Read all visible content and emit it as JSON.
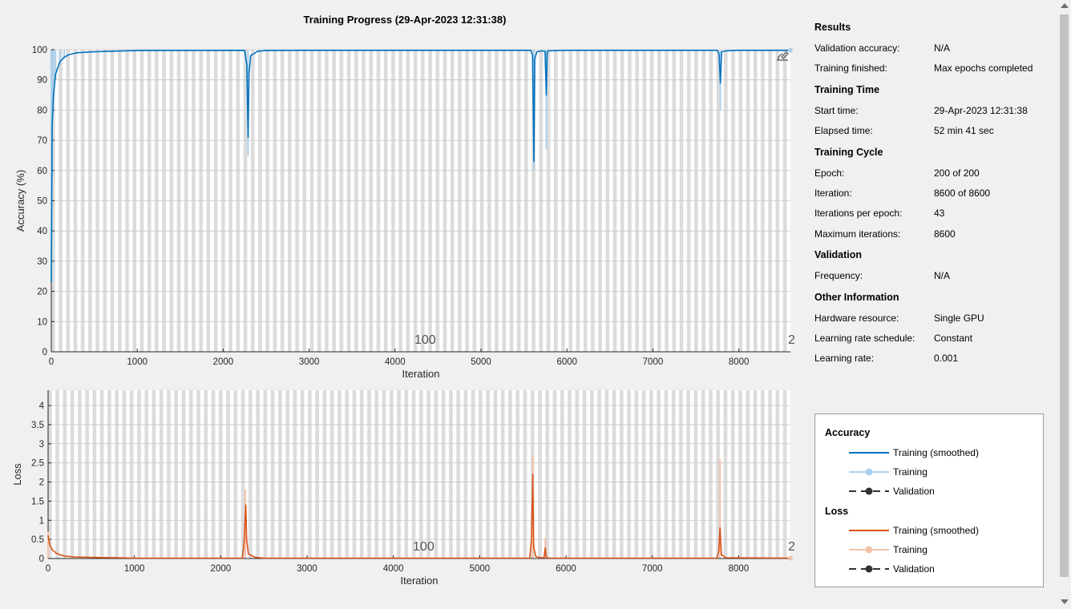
{
  "title": "Training Progress (29-Apr-2023 12:31:38)",
  "info": {
    "results": {
      "heading": "Results",
      "rows": [
        {
          "label": "Validation accuracy:",
          "value": "N/A"
        },
        {
          "label": "Training finished:",
          "value": "Max epochs completed"
        }
      ]
    },
    "training_time": {
      "heading": "Training Time",
      "rows": [
        {
          "label": "Start time:",
          "value": "29-Apr-2023 12:31:38"
        },
        {
          "label": "Elapsed time:",
          "value": "52 min 41 sec"
        }
      ]
    },
    "training_cycle": {
      "heading": "Training Cycle",
      "rows": [
        {
          "label": "Epoch:",
          "value": "200 of 200"
        },
        {
          "label": "Iteration:",
          "value": "8600 of 8600"
        },
        {
          "label": "Iterations per epoch:",
          "value": "43"
        },
        {
          "label": "Maximum iterations:",
          "value": "8600"
        }
      ]
    },
    "validation": {
      "heading": "Validation",
      "rows": [
        {
          "label": "Frequency:",
          "value": "N/A"
        }
      ]
    },
    "other": {
      "heading": "Other Information",
      "rows": [
        {
          "label": "Hardware resource:",
          "value": "Single GPU"
        },
        {
          "label": "Learning rate schedule:",
          "value": "Constant"
        },
        {
          "label": "Learning rate:",
          "value": "0.001"
        }
      ]
    }
  },
  "legend": {
    "accuracy_heading": "Accuracy",
    "loss_heading": "Loss",
    "items": {
      "acc_smoothed": "Training (smoothed)",
      "acc_training": "Training",
      "acc_validation": "Validation",
      "loss_smoothed": "Training (smoothed)",
      "loss_training": "Training",
      "loss_validation": "Validation"
    }
  },
  "colors": {
    "accuracy": "#0072bd",
    "accuracy_light": "#aed0ea",
    "loss": "#d95319",
    "loss_light": "#f4c2ac",
    "validation": "#333333"
  },
  "icons": {
    "export": "export-icon"
  },
  "chart_data": [
    {
      "type": "line",
      "ylabel": "Accuracy (%)",
      "xlabel": "Iteration",
      "xlim": [
        0,
        8600
      ],
      "ylim": [
        0,
        100
      ],
      "xticks": [
        0,
        1000,
        2000,
        3000,
        4000,
        5000,
        6000,
        7000,
        8000
      ],
      "yticks": [
        0,
        10,
        20,
        30,
        40,
        50,
        60,
        70,
        80,
        90,
        100
      ],
      "epoch_markers": [
        "100",
        "2"
      ],
      "epochs": 200,
      "series": [
        {
          "name": "Training (smoothed)",
          "x": [
            0,
            10,
            25,
            50,
            100,
            150,
            200,
            300,
            500,
            700,
            1000,
            2250,
            2275,
            2290,
            2300,
            2320,
            2400,
            2500,
            3000,
            5580,
            5600,
            5615,
            5625,
            5650,
            5700,
            5745,
            5760,
            5770,
            5780,
            6000,
            7750,
            7770,
            7785,
            7800,
            7850,
            8000,
            8600
          ],
          "y": [
            23,
            75,
            85,
            92,
            96,
            97.5,
            98.3,
            99,
            99.3,
            99.5,
            99.7,
            99.8,
            95,
            71,
            92,
            98,
            99.5,
            99.7,
            99.8,
            99.8,
            98,
            63,
            97,
            99.3,
            99.6,
            99.5,
            85,
            99,
            99.6,
            99.8,
            99.8,
            98.5,
            89,
            99.3,
            99.6,
            99.8,
            99.8
          ]
        },
        {
          "name": "Training",
          "x": [
            0,
            10,
            25,
            50,
            100,
            150,
            2290,
            5615,
            5760,
            7785,
            8600
          ],
          "y": [
            23,
            72,
            83,
            90,
            95,
            97,
            65,
            60,
            67,
            80,
            99.8
          ]
        }
      ]
    },
    {
      "type": "line",
      "ylabel": "Loss",
      "xlabel": "Iteration",
      "xlim": [
        0,
        8600
      ],
      "ylim": [
        0,
        4.4
      ],
      "xticks": [
        0,
        1000,
        2000,
        3000,
        4000,
        5000,
        6000,
        7000,
        8000
      ],
      "yticks": [
        0,
        0.5,
        1,
        1.5,
        2,
        2.5,
        3,
        3.5,
        4
      ],
      "epoch_markers": [
        "100",
        "2"
      ],
      "series": [
        {
          "name": "Training (smoothed)",
          "x": [
            0,
            20,
            50,
            100,
            150,
            200,
            300,
            500,
            800,
            1000,
            2250,
            2270,
            2290,
            2300,
            2320,
            2400,
            2500,
            5580,
            5600,
            5615,
            5625,
            5650,
            5700,
            5745,
            5760,
            5770,
            5790,
            7750,
            7770,
            7785,
            7800,
            7850,
            8600
          ],
          "y": [
            0.6,
            0.35,
            0.22,
            0.13,
            0.09,
            0.06,
            0.04,
            0.03,
            0.02,
            0.01,
            0.01,
            0.4,
            1.4,
            0.5,
            0.12,
            0.03,
            0.01,
            0.01,
            0.5,
            2.2,
            0.3,
            0.05,
            0.02,
            0.02,
            0.28,
            0.05,
            0.01,
            0.01,
            0.2,
            0.8,
            0.1,
            0.02,
            0.01
          ]
        },
        {
          "name": "Training",
          "x": [
            0,
            2285,
            5615,
            5760,
            7785,
            8600
          ],
          "y": [
            0.7,
            1.8,
            2.7,
            0.55,
            2.6,
            0.01
          ]
        }
      ]
    }
  ]
}
